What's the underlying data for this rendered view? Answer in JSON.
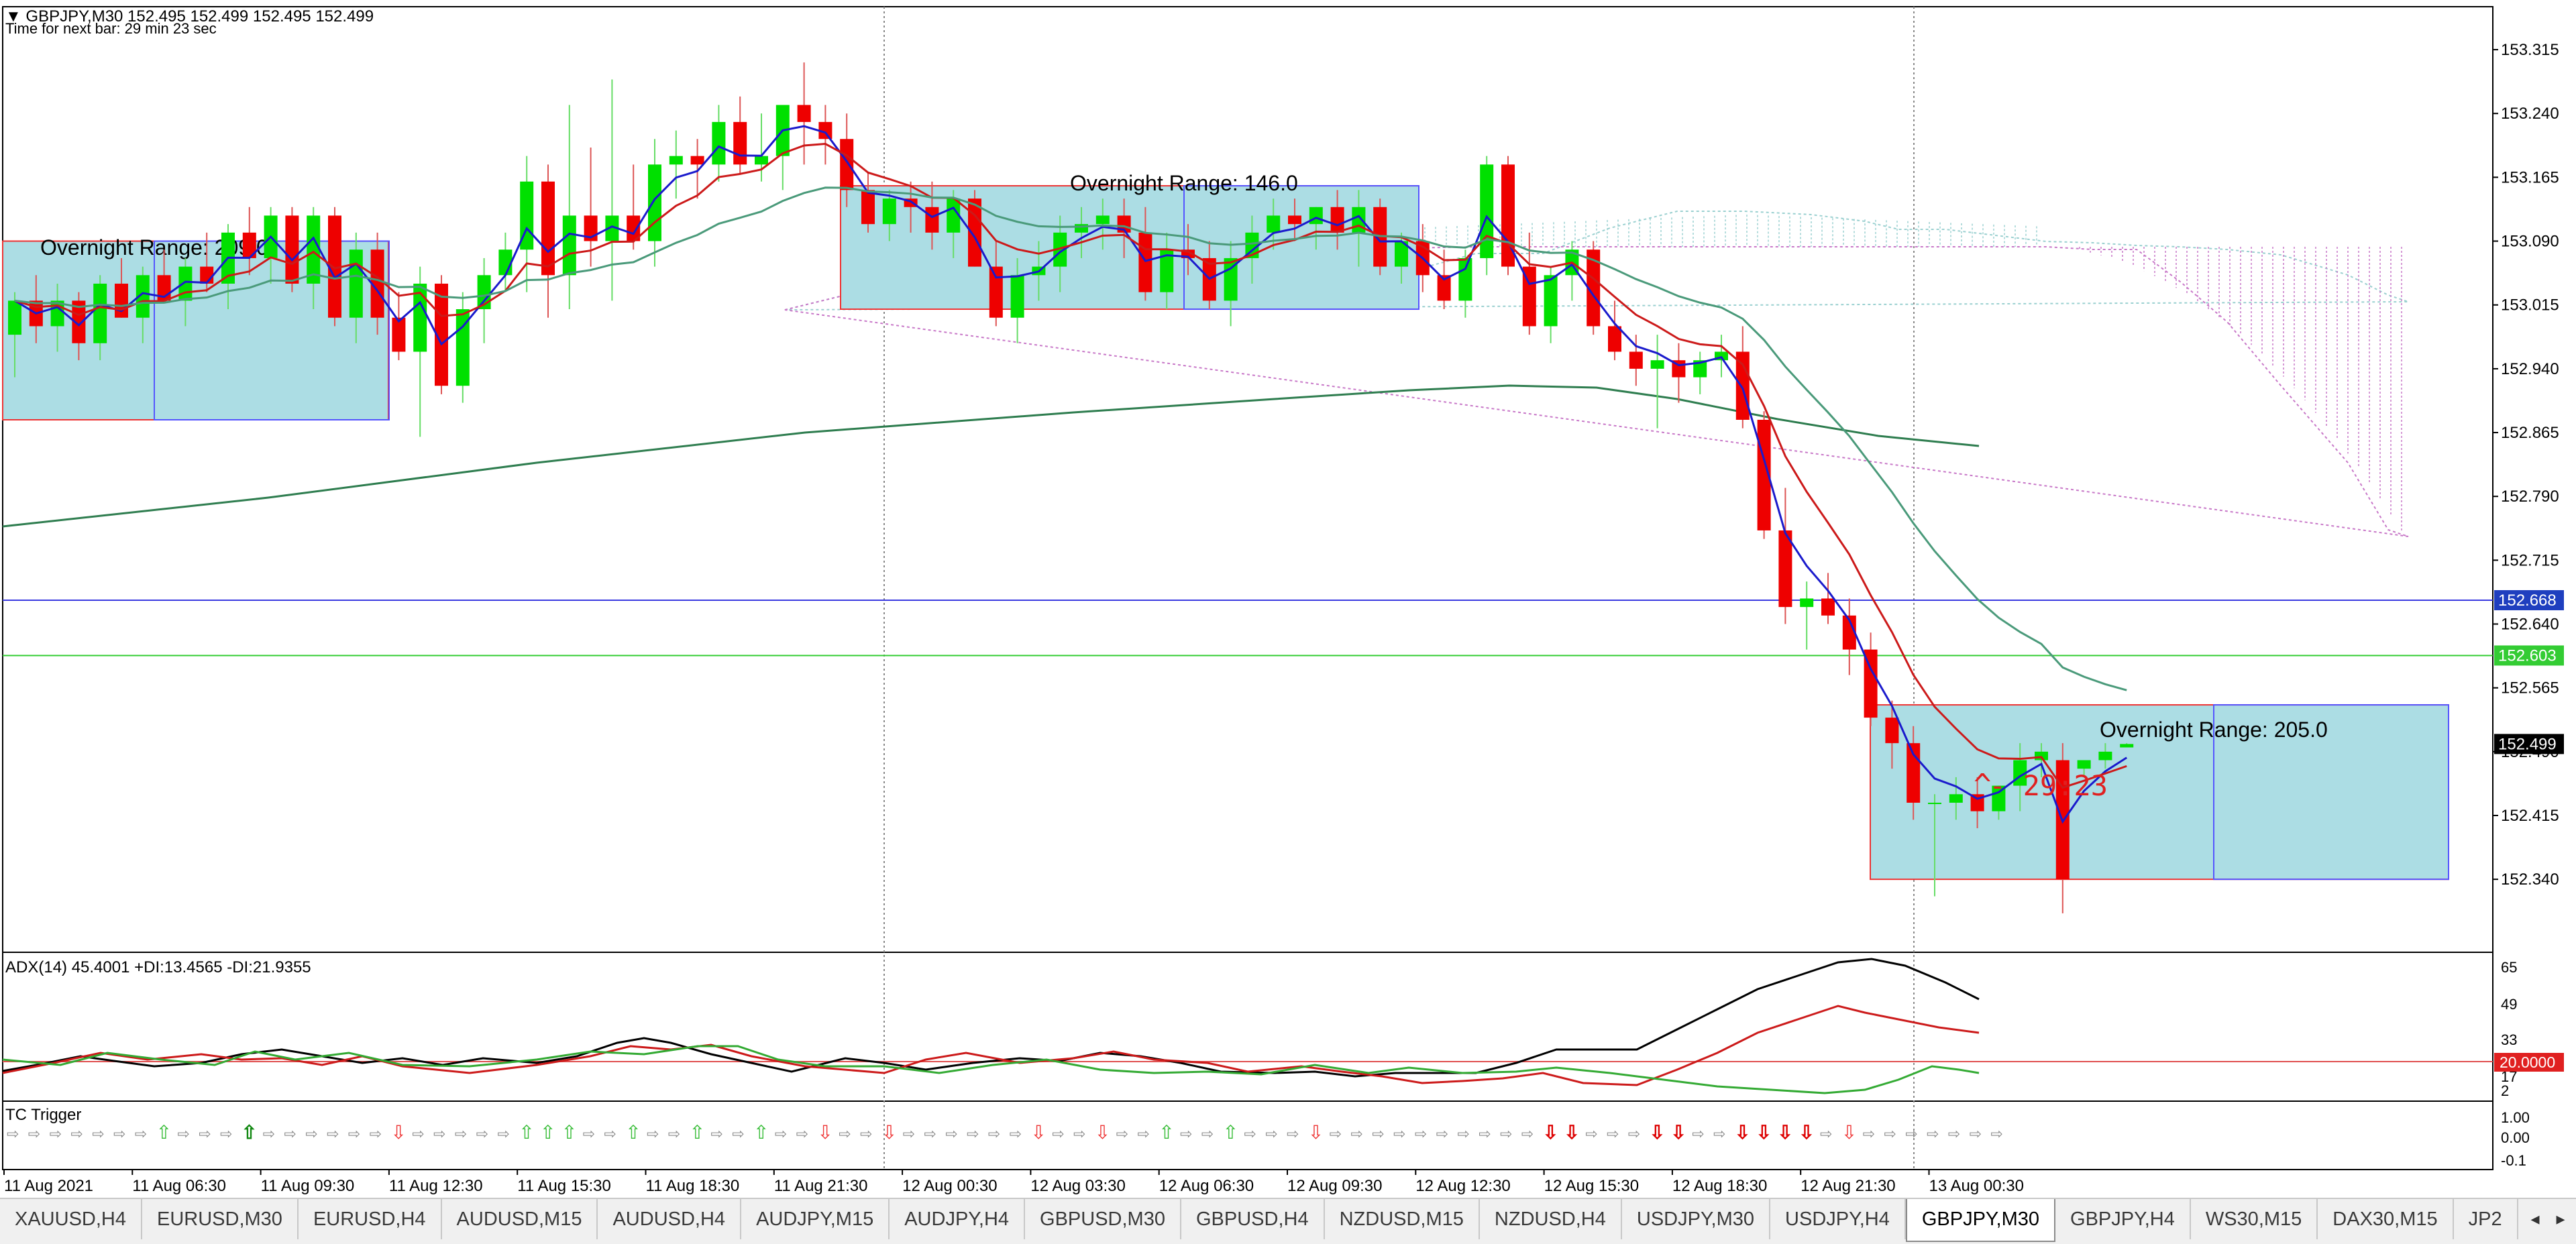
{
  "header": {
    "symbol_line": "GBPJPY,M30  152.495 152.499 152.495 152.499",
    "timer_line": "Time for next bar: 29 min 23 sec"
  },
  "main_chart": {
    "price_ticks": [
      "153.315",
      "153.240",
      "153.165",
      "153.090",
      "153.015",
      "152.940",
      "152.865",
      "152.790",
      "152.715",
      "152.640",
      "152.565",
      "152.490",
      "152.415",
      "152.340"
    ],
    "price_min": 152.27,
    "price_max": 153.33,
    "current_price": "152.499",
    "line_blue_price": "152.668",
    "line_green_price": "152.603",
    "countdown_label": "- 29:23",
    "overnight_ranges": [
      {
        "label": "Overnight Range: 209.0",
        "price_high": 153.09,
        "price_low": 152.88
      },
      {
        "label": "Overnight Range: 146.0",
        "price_high": 153.155,
        "price_low": 153.01
      },
      {
        "label": "Overnight Range: 205.0",
        "price_high": 152.545,
        "price_low": 152.34
      }
    ]
  },
  "adx_panel": {
    "label": "ADX(14) 45.4001 +DI:13.4565 -DI:21.9355",
    "ticks": [
      "65",
      "49",
      "33",
      "17",
      "2"
    ],
    "level_label": "20.0000"
  },
  "tc_panel": {
    "label": "TC Trigger",
    "ticks": [
      "1.00",
      "0.00",
      "-0.1"
    ],
    "arrows": [
      "right",
      "right",
      "right",
      "right",
      "right",
      "right",
      "right",
      "up-green",
      "right",
      "right",
      "right",
      "up-green-bold",
      "right",
      "right",
      "right",
      "right",
      "right",
      "right",
      "down-red",
      "right",
      "right",
      "right",
      "right",
      "right",
      "up-green",
      "up-green",
      "up-green",
      "right",
      "right",
      "up-green",
      "right",
      "right",
      "up-green",
      "right",
      "right",
      "up-green",
      "right",
      "right",
      "down-red",
      "right",
      "right",
      "down-red",
      "right",
      "right",
      "right",
      "right",
      "right",
      "right",
      "down-red",
      "right",
      "right",
      "down-red",
      "right",
      "right",
      "up-green",
      "right",
      "right",
      "up-green",
      "right",
      "right",
      "right",
      "down-red",
      "right",
      "right",
      "right",
      "right",
      "right",
      "right",
      "right",
      "right",
      "right",
      "right",
      "down-red-bold",
      "down-red-bold",
      "right",
      "right",
      "right",
      "down-red-bold",
      "down-red-bold",
      "right",
      "right",
      "down-red-bold",
      "down-red-bold",
      "down-red-bold",
      "down-red-bold",
      "right",
      "down-red",
      "right",
      "right",
      "right",
      "right",
      "right",
      "right",
      "right"
    ]
  },
  "time_axis": {
    "labels": [
      "11 Aug 2021",
      "11 Aug 06:30",
      "11 Aug 09:30",
      "11 Aug 12:30",
      "11 Aug 15:30",
      "11 Aug 18:30",
      "11 Aug 21:30",
      "12 Aug 00:30",
      "12 Aug 03:30",
      "12 Aug 06:30",
      "12 Aug 09:30",
      "12 Aug 12:30",
      "12 Aug 15:30",
      "12 Aug 18:30",
      "12 Aug 21:30",
      "13 Aug 00:30"
    ]
  },
  "tabs": [
    {
      "label": "XAUUSD,H4"
    },
    {
      "label": "EURUSD,M30"
    },
    {
      "label": "EURUSD,H4"
    },
    {
      "label": "AUDUSD,M15"
    },
    {
      "label": "AUDUSD,H4"
    },
    {
      "label": "AUDJPY,M15"
    },
    {
      "label": "AUDJPY,H4"
    },
    {
      "label": "GBPUSD,M30"
    },
    {
      "label": "GBPUSD,H4"
    },
    {
      "label": "NZDUSD,M15"
    },
    {
      "label": "NZDUSD,H4"
    },
    {
      "label": "USDJPY,M30"
    },
    {
      "label": "USDJPY,H4"
    },
    {
      "label": "GBPJPY,M30",
      "active": true
    },
    {
      "label": "GBPJPY,H4"
    },
    {
      "label": "WS30,M15"
    },
    {
      "label": "DAX30,M15"
    },
    {
      "label": "JP2"
    }
  ],
  "candles": [
    [
      152.98,
      153.03,
      152.93,
      153.02
    ],
    [
      153.02,
      153.05,
      152.97,
      152.99
    ],
    [
      152.99,
      153.04,
      152.96,
      153.02
    ],
    [
      153.02,
      153.03,
      152.95,
      152.97
    ],
    [
      152.97,
      153.05,
      152.95,
      153.04
    ],
    [
      153.04,
      153.07,
      153.0,
      153.0
    ],
    [
      153.0,
      153.06,
      152.97,
      153.05
    ],
    [
      153.05,
      153.08,
      153.02,
      153.02
    ],
    [
      153.02,
      153.07,
      152.99,
      153.06
    ],
    [
      153.06,
      153.1,
      153.03,
      153.04
    ],
    [
      153.04,
      153.11,
      153.01,
      153.1
    ],
    [
      153.1,
      153.13,
      153.05,
      153.07
    ],
    [
      153.07,
      153.13,
      153.04,
      153.12
    ],
    [
      153.12,
      153.13,
      153.03,
      153.04
    ],
    [
      153.04,
      153.13,
      153.01,
      153.12
    ],
    [
      153.12,
      153.13,
      152.99,
      153.0
    ],
    [
      153.0,
      153.1,
      152.97,
      153.08
    ],
    [
      153.08,
      153.1,
      152.98,
      153.0
    ],
    [
      153.0,
      153.03,
      152.95,
      152.96
    ],
    [
      152.96,
      153.06,
      152.86,
      153.04
    ],
    [
      153.04,
      153.05,
      152.91,
      152.92
    ],
    [
      152.92,
      153.03,
      152.9,
      153.01
    ],
    [
      153.01,
      153.07,
      152.97,
      153.05
    ],
    [
      153.05,
      153.1,
      153.03,
      153.08
    ],
    [
      153.08,
      153.19,
      153.03,
      153.16
    ],
    [
      153.16,
      153.18,
      153.0,
      153.05
    ],
    [
      153.05,
      153.25,
      153.01,
      153.12
    ],
    [
      153.12,
      153.2,
      153.06,
      153.09
    ],
    [
      153.09,
      153.28,
      153.02,
      153.12
    ],
    [
      153.12,
      153.18,
      153.08,
      153.09
    ],
    [
      153.09,
      153.21,
      153.06,
      153.18
    ],
    [
      153.18,
      153.22,
      153.14,
      153.19
    ],
    [
      153.19,
      153.21,
      153.14,
      153.18
    ],
    [
      153.18,
      153.25,
      153.16,
      153.23
    ],
    [
      153.23,
      153.26,
      153.17,
      153.18
    ],
    [
      153.18,
      153.24,
      153.16,
      153.19
    ],
    [
      153.19,
      153.25,
      153.15,
      153.25
    ],
    [
      153.25,
      153.3,
      153.18,
      153.23
    ],
    [
      153.23,
      153.25,
      153.18,
      153.21
    ],
    [
      153.21,
      153.24,
      153.13,
      153.15
    ],
    [
      153.15,
      153.17,
      153.1,
      153.11
    ],
    [
      153.11,
      153.15,
      153.09,
      153.14
    ],
    [
      153.14,
      153.16,
      153.1,
      153.13
    ],
    [
      153.13,
      153.16,
      153.08,
      153.1
    ],
    [
      153.1,
      153.15,
      153.07,
      153.14
    ],
    [
      153.14,
      153.15,
      153.06,
      153.06
    ],
    [
      153.06,
      153.09,
      152.99,
      153.0
    ],
    [
      153.0,
      153.07,
      152.97,
      153.05
    ],
    [
      153.05,
      153.09,
      153.02,
      153.06
    ],
    [
      153.06,
      153.12,
      153.03,
      153.1
    ],
    [
      153.1,
      153.13,
      153.07,
      153.11
    ],
    [
      153.11,
      153.14,
      153.08,
      153.12
    ],
    [
      153.12,
      153.14,
      153.07,
      153.1
    ],
    [
      153.1,
      153.13,
      153.02,
      153.03
    ],
    [
      153.03,
      153.1,
      153.01,
      153.08
    ],
    [
      153.08,
      153.11,
      153.05,
      153.07
    ],
    [
      153.07,
      153.09,
      153.01,
      153.02
    ],
    [
      153.02,
      153.09,
      152.99,
      153.07
    ],
    [
      153.07,
      153.12,
      153.04,
      153.1
    ],
    [
      153.1,
      153.14,
      153.08,
      153.12
    ],
    [
      153.12,
      153.14,
      153.09,
      153.11
    ],
    [
      153.11,
      153.13,
      153.08,
      153.13
    ],
    [
      153.13,
      153.15,
      153.08,
      153.1
    ],
    [
      153.1,
      153.15,
      153.06,
      153.13
    ],
    [
      153.13,
      153.14,
      153.05,
      153.06
    ],
    [
      153.06,
      153.1,
      153.04,
      153.09
    ],
    [
      153.09,
      153.11,
      153.03,
      153.05
    ],
    [
      153.05,
      153.08,
      153.01,
      153.02
    ],
    [
      153.02,
      153.08,
      153.0,
      153.07
    ],
    [
      153.07,
      153.19,
      153.05,
      153.18
    ],
    [
      153.18,
      153.19,
      153.05,
      153.06
    ],
    [
      153.06,
      153.1,
      152.98,
      152.99
    ],
    [
      152.99,
      153.06,
      152.97,
      153.05
    ],
    [
      153.05,
      153.09,
      153.02,
      153.08
    ],
    [
      153.08,
      153.09,
      152.98,
      152.99
    ],
    [
      152.99,
      153.02,
      152.95,
      152.96
    ],
    [
      152.96,
      152.98,
      152.92,
      152.94
    ],
    [
      152.94,
      152.98,
      152.87,
      152.95
    ],
    [
      152.95,
      152.97,
      152.9,
      152.93
    ],
    [
      152.93,
      152.96,
      152.91,
      152.95
    ],
    [
      152.95,
      152.98,
      152.93,
      152.96
    ],
    [
      152.96,
      152.99,
      152.87,
      152.88
    ],
    [
      152.88,
      152.89,
      152.74,
      152.75
    ],
    [
      152.75,
      152.8,
      152.64,
      152.66
    ],
    [
      152.66,
      152.69,
      152.61,
      152.67
    ],
    [
      152.67,
      152.7,
      152.64,
      152.65
    ],
    [
      152.65,
      152.67,
      152.58,
      152.61
    ],
    [
      152.61,
      152.63,
      152.52,
      152.53
    ],
    [
      152.53,
      152.55,
      152.47,
      152.5
    ],
    [
      152.5,
      152.52,
      152.41,
      152.43
    ],
    [
      152.43,
      152.44,
      152.32,
      152.43
    ],
    [
      152.43,
      152.46,
      152.41,
      152.44
    ],
    [
      152.44,
      152.46,
      152.4,
      152.42
    ],
    [
      152.42,
      152.45,
      152.41,
      152.45
    ],
    [
      152.45,
      152.5,
      152.42,
      152.48
    ],
    [
      152.48,
      152.5,
      152.46,
      152.49
    ],
    [
      152.48,
      152.5,
      152.3,
      152.34
    ],
    [
      152.47,
      152.48,
      152.46,
      152.48
    ],
    [
      152.48,
      152.5,
      152.47,
      152.49
    ],
    [
      152.495,
      152.5,
      152.495,
      152.499
    ]
  ]
}
